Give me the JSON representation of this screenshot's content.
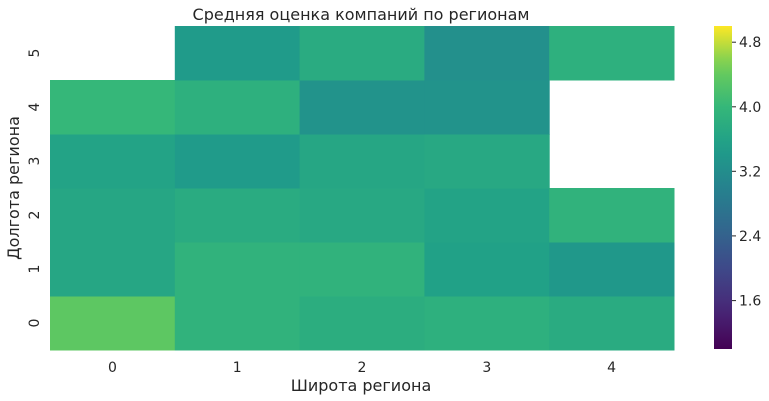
{
  "chart_data": {
    "type": "heatmap",
    "title": "Средняя оценка компаний по регионам",
    "xlabel": "Широта региона",
    "ylabel": "Долгота региона",
    "x_categories": [
      "0",
      "1",
      "2",
      "3",
      "4"
    ],
    "y_categories": [
      "0",
      "1",
      "2",
      "3",
      "4",
      "5"
    ],
    "values": [
      [
        4.35,
        3.9,
        3.8,
        3.85,
        3.75
      ],
      [
        3.65,
        3.9,
        3.9,
        3.55,
        3.4
      ],
      [
        3.65,
        3.75,
        3.7,
        3.6,
        3.9
      ],
      [
        3.6,
        3.45,
        3.65,
        3.7,
        null
      ],
      [
        4.0,
        3.85,
        3.3,
        3.3,
        null
      ],
      [
        null,
        3.45,
        3.75,
        3.25,
        3.85
      ]
    ],
    "colorscale": "viridis",
    "vmin": 1.0,
    "vmax": 5.0,
    "colorbar_ticks": [
      "1.6",
      "2.4",
      "3.2",
      "4.0",
      "4.8"
    ],
    "colorbar_tick_values": [
      1.6,
      2.4,
      3.2,
      4.0,
      4.8
    ],
    "grid": false
  }
}
